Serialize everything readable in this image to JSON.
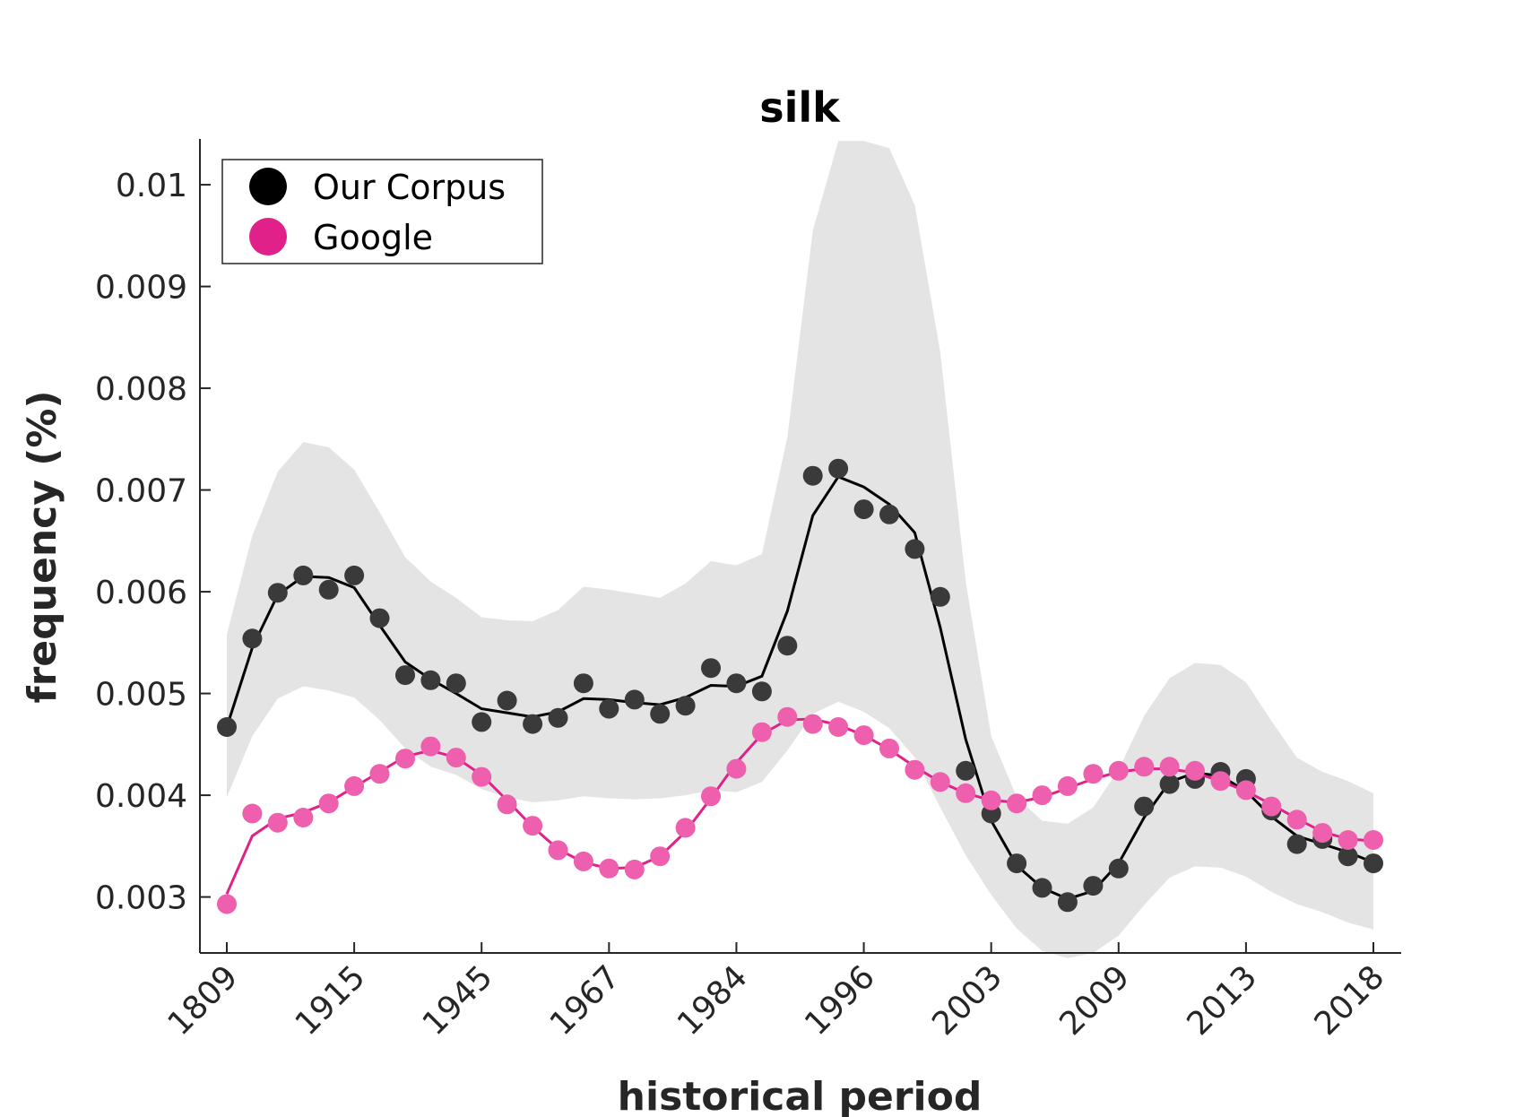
{
  "chart_data": {
    "type": "scatter",
    "title": "silk",
    "xlabel": "historical period",
    "ylabel": "frequency (%)",
    "x_tick_labels": [
      "1809",
      "1915",
      "1945",
      "1967",
      "1984",
      "1996",
      "2003",
      "2009",
      "2013",
      "2018"
    ],
    "x_tick_every": 5,
    "y_ticks": [
      "0.003",
      "0.004",
      "0.005",
      "0.006",
      "0.007",
      "0.008",
      "0.009",
      "0.01"
    ],
    "ylim": [
      0.00245,
      0.01045
    ],
    "grid": false,
    "legend_position": "top-left",
    "series": [
      {
        "name": "Our Corpus",
        "color": "#000000",
        "marker_color": "#3a3a3a",
        "points": [
          0.00467,
          0.00554,
          0.00599,
          0.00616,
          0.00602,
          0.00616,
          0.00574,
          0.00518,
          0.00513,
          0.0051,
          0.00472,
          0.00493,
          0.0047,
          0.00476,
          0.0051,
          0.00485,
          0.00494,
          0.0048,
          0.00488,
          0.00525,
          0.0051,
          0.00502,
          0.00547,
          0.00714,
          0.00721,
          0.00681,
          0.00676,
          0.00642,
          0.00595,
          0.00424,
          0.00382,
          0.00333,
          0.00309,
          0.00295,
          0.00311,
          0.00328,
          0.00389,
          0.00411,
          0.00416,
          0.00423,
          0.00416,
          0.00385,
          0.00352,
          0.00357,
          0.0034,
          0.00333
        ],
        "smooth": [
          0.00467,
          0.00545,
          0.00597,
          0.00615,
          0.00614,
          0.00604,
          0.00567,
          0.00531,
          0.00514,
          0.005,
          0.00485,
          0.00481,
          0.00477,
          0.00482,
          0.00495,
          0.00494,
          0.00491,
          0.00489,
          0.00496,
          0.00508,
          0.00507,
          0.00517,
          0.00581,
          0.00675,
          0.00713,
          0.00703,
          0.00686,
          0.00658,
          0.00565,
          0.00455,
          0.00375,
          0.00331,
          0.00309,
          0.00298,
          0.00306,
          0.00333,
          0.00378,
          0.00413,
          0.00422,
          0.00419,
          0.00404,
          0.00379,
          0.0036,
          0.00352,
          0.00344,
          0.00334
        ],
        "band_upper": [
          0.00558,
          0.00655,
          0.00718,
          0.00747,
          0.00742,
          0.0072,
          0.00678,
          0.00634,
          0.0061,
          0.00594,
          0.00575,
          0.00572,
          0.00571,
          0.00582,
          0.00605,
          0.00602,
          0.00598,
          0.00594,
          0.00608,
          0.0063,
          0.00626,
          0.00637,
          0.00752,
          0.00955,
          0.01043,
          0.01043,
          0.01036,
          0.0098,
          0.00836,
          0.0061,
          0.00458,
          0.00398,
          0.00375,
          0.00372,
          0.00388,
          0.00425,
          0.00478,
          0.00515,
          0.0053,
          0.00528,
          0.00511,
          0.00473,
          0.00437,
          0.00423,
          0.00414,
          0.00402
        ],
        "band_lower": [
          0.00398,
          0.00458,
          0.00495,
          0.00507,
          0.00503,
          0.00496,
          0.00474,
          0.00446,
          0.00428,
          0.0042,
          0.00406,
          0.00398,
          0.00393,
          0.00395,
          0.00399,
          0.00397,
          0.00396,
          0.00397,
          0.004,
          0.00405,
          0.00403,
          0.00413,
          0.00444,
          0.0048,
          0.00492,
          0.00482,
          0.00466,
          0.00437,
          0.00388,
          0.00341,
          0.00302,
          0.00269,
          0.00247,
          0.0024,
          0.00245,
          0.00262,
          0.00292,
          0.00319,
          0.0033,
          0.00329,
          0.0032,
          0.00305,
          0.00293,
          0.00285,
          0.00275,
          0.00268
        ]
      },
      {
        "name": "Google",
        "color": "#e0218a",
        "marker_color": "#ee5fad",
        "points": [
          0.00293,
          0.00382,
          0.00373,
          0.00378,
          0.00392,
          0.00409,
          0.00421,
          0.00436,
          0.00448,
          0.00437,
          0.00418,
          0.00391,
          0.0037,
          0.00346,
          0.00335,
          0.00328,
          0.00327,
          0.0034,
          0.00368,
          0.00399,
          0.00426,
          0.00462,
          0.00477,
          0.0047,
          0.00467,
          0.00459,
          0.00446,
          0.00425,
          0.00413,
          0.00402,
          0.00395,
          0.00392,
          0.004,
          0.00409,
          0.00421,
          0.00424,
          0.00428,
          0.00428,
          0.00424,
          0.00414,
          0.00405,
          0.00389,
          0.00376,
          0.00363,
          0.00356,
          0.00356
        ],
        "smooth": [
          0.00303,
          0.0036,
          0.00377,
          0.00383,
          0.00393,
          0.00408,
          0.00423,
          0.00438,
          0.00444,
          0.00437,
          0.0042,
          0.00395,
          0.00369,
          0.00347,
          0.00334,
          0.00328,
          0.00329,
          0.0034,
          0.00364,
          0.00397,
          0.00432,
          0.0046,
          0.00474,
          0.00475,
          0.00469,
          0.00459,
          0.00445,
          0.00428,
          0.00413,
          0.00402,
          0.00395,
          0.00393,
          0.00398,
          0.00407,
          0.00416,
          0.00423,
          0.00426,
          0.00426,
          0.00422,
          0.00414,
          0.00404,
          0.00391,
          0.00377,
          0.00364,
          0.00357,
          0.00355
        ]
      }
    ]
  }
}
